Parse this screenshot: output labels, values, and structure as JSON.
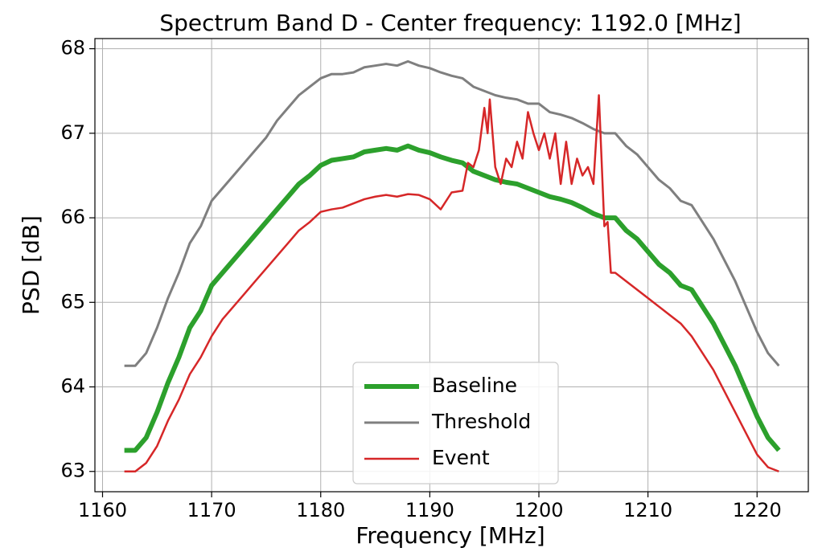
{
  "chart_data": {
    "type": "line",
    "title": "Spectrum Band D - Center frequency: 1192.0 [MHz]",
    "x_label": "Frequency [MHz]",
    "y_label": "PSD [dB]",
    "xlim": [
      1159.3,
      1224.7
    ],
    "ylim": [
      62.76,
      68.12
    ],
    "xticks": [
      1160,
      1170,
      1180,
      1190,
      1200,
      1210,
      1220
    ],
    "yticks": [
      63,
      64,
      65,
      66,
      67,
      68
    ],
    "grid": true,
    "legend": "lower center",
    "series": [
      {
        "name": "Baseline",
        "color": "#2ca02c",
        "linewidth": 6,
        "x": [
          1162,
          1163,
          1164,
          1165,
          1166,
          1167,
          1168,
          1169,
          1170,
          1171,
          1172,
          1173,
          1174,
          1175,
          1176,
          1177,
          1178,
          1179,
          1180,
          1181,
          1182,
          1183,
          1184,
          1185,
          1186,
          1187,
          1188,
          1189,
          1190,
          1191,
          1192,
          1193,
          1194,
          1195,
          1196,
          1197,
          1198,
          1199,
          1200,
          1201,
          1202,
          1203,
          1204,
          1205,
          1206,
          1207,
          1208,
          1209,
          1210,
          1211,
          1212,
          1213,
          1214,
          1215,
          1216,
          1217,
          1218,
          1219,
          1220,
          1221,
          1222
        ],
        "values": [
          63.25,
          63.25,
          63.4,
          63.7,
          64.05,
          64.35,
          64.7,
          64.9,
          65.2,
          65.35,
          65.5,
          65.65,
          65.8,
          65.95,
          66.1,
          66.25,
          66.4,
          66.5,
          66.62,
          66.68,
          66.7,
          66.72,
          66.78,
          66.8,
          66.82,
          66.8,
          66.85,
          66.8,
          66.77,
          66.72,
          66.68,
          66.65,
          66.55,
          66.5,
          66.45,
          66.42,
          66.4,
          66.35,
          66.3,
          66.25,
          66.22,
          66.18,
          66.12,
          66.05,
          66.0,
          66.0,
          65.85,
          65.75,
          65.6,
          65.45,
          65.35,
          65.2,
          65.15,
          64.95,
          64.75,
          64.5,
          64.25,
          63.95,
          63.65,
          63.4,
          63.25
        ]
      },
      {
        "name": "Threshold",
        "color": "#7f7f7f",
        "linewidth": 3,
        "x": [
          1162,
          1163,
          1164,
          1165,
          1166,
          1167,
          1168,
          1169,
          1170,
          1171,
          1172,
          1173,
          1174,
          1175,
          1176,
          1177,
          1178,
          1179,
          1180,
          1181,
          1182,
          1183,
          1184,
          1185,
          1186,
          1187,
          1188,
          1189,
          1190,
          1191,
          1192,
          1193,
          1194,
          1195,
          1196,
          1197,
          1198,
          1199,
          1200,
          1201,
          1202,
          1203,
          1204,
          1205,
          1206,
          1207,
          1208,
          1209,
          1210,
          1211,
          1212,
          1213,
          1214,
          1215,
          1216,
          1217,
          1218,
          1219,
          1220,
          1221,
          1222
        ],
        "values": [
          64.25,
          64.25,
          64.4,
          64.7,
          65.05,
          65.35,
          65.7,
          65.9,
          66.2,
          66.35,
          66.5,
          66.65,
          66.8,
          66.95,
          67.15,
          67.3,
          67.45,
          67.55,
          67.65,
          67.7,
          67.7,
          67.72,
          67.78,
          67.8,
          67.82,
          67.8,
          67.85,
          67.8,
          67.77,
          67.72,
          67.68,
          67.65,
          67.55,
          67.5,
          67.45,
          67.42,
          67.4,
          67.35,
          67.35,
          67.25,
          67.22,
          67.18,
          67.12,
          67.05,
          67.0,
          67.0,
          66.85,
          66.75,
          66.6,
          66.45,
          66.35,
          66.2,
          66.15,
          65.95,
          65.75,
          65.5,
          65.25,
          64.95,
          64.65,
          64.4,
          64.25
        ]
      },
      {
        "name": "Event",
        "color": "#d62728",
        "linewidth": 2.5,
        "x": [
          1162,
          1163,
          1164,
          1165,
          1166,
          1167,
          1168,
          1169,
          1170,
          1171,
          1172,
          1173,
          1174,
          1175,
          1176,
          1177,
          1178,
          1179,
          1180,
          1181,
          1182,
          1183,
          1184,
          1185,
          1186,
          1187,
          1188,
          1189,
          1190,
          1191,
          1192,
          1193,
          1193.5,
          1194,
          1194.5,
          1195,
          1195.3,
          1195.5,
          1196,
          1196.5,
          1197,
          1197.5,
          1198,
          1198.5,
          1199,
          1199.5,
          1200,
          1200.5,
          1201,
          1201.5,
          1202,
          1202.5,
          1203,
          1203.5,
          1204,
          1204.5,
          1205,
          1205.5,
          1206,
          1206.3,
          1206.6,
          1207,
          1208,
          1209,
          1210,
          1211,
          1212,
          1213,
          1214,
          1215,
          1216,
          1217,
          1218,
          1219,
          1220,
          1221,
          1222
        ],
        "values": [
          63.0,
          63.0,
          63.1,
          63.3,
          63.6,
          63.85,
          64.15,
          64.35,
          64.6,
          64.8,
          64.95,
          65.1,
          65.25,
          65.4,
          65.55,
          65.7,
          65.85,
          65.95,
          66.07,
          66.1,
          66.12,
          66.17,
          66.22,
          66.25,
          66.27,
          66.25,
          66.28,
          66.27,
          66.22,
          66.1,
          66.3,
          66.32,
          66.65,
          66.6,
          66.8,
          67.3,
          67.0,
          67.4,
          66.6,
          66.4,
          66.7,
          66.6,
          66.9,
          66.7,
          67.25,
          67.0,
          66.8,
          67.0,
          66.7,
          67.0,
          66.4,
          66.9,
          66.4,
          66.7,
          66.5,
          66.6,
          66.4,
          67.45,
          65.9,
          65.95,
          65.35,
          65.35,
          65.25,
          65.15,
          65.05,
          64.95,
          64.85,
          64.75,
          64.6,
          64.4,
          64.2,
          63.95,
          63.7,
          63.45,
          63.2,
          63.05,
          63.0
        ]
      }
    ]
  }
}
